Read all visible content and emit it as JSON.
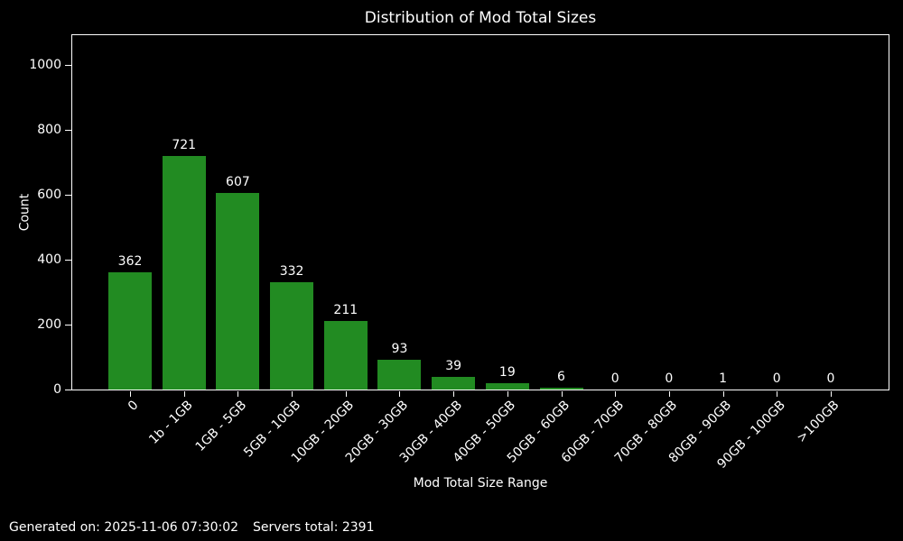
{
  "footer": {
    "generated": "Generated on: 2025-11-06 07:30:02",
    "servers_total": "Servers total: 2391"
  },
  "colors": {
    "background": "#000000",
    "bar": "#228B22",
    "text": "#ffffff",
    "axis": "#ffffff"
  },
  "chart_data": {
    "type": "bar",
    "title": "Distribution of Mod Total Sizes",
    "xlabel": "Mod Total Size Range",
    "ylabel": "Count",
    "categories": [
      "0",
      "1b - 1GB",
      "1GB - 5GB",
      "5GB - 10GB",
      "10GB - 20GB",
      "20GB - 30GB",
      "30GB - 40GB",
      "40GB - 50GB",
      "50GB - 60GB",
      "60GB - 70GB",
      "70GB - 80GB",
      "80GB - 90GB",
      "90GB - 100GB",
      ">100GB"
    ],
    "values": [
      362,
      721,
      607,
      332,
      211,
      93,
      39,
      19,
      6,
      0,
      0,
      1,
      0,
      0
    ],
    "bar_labels": true,
    "bar_color": "#228B22",
    "ylim": [
      0,
      1094
    ],
    "yticks": [
      0,
      200,
      400,
      600,
      800,
      1000
    ],
    "x_tick_rotation": 45,
    "grid": false,
    "legend": null,
    "background": "#000000"
  }
}
